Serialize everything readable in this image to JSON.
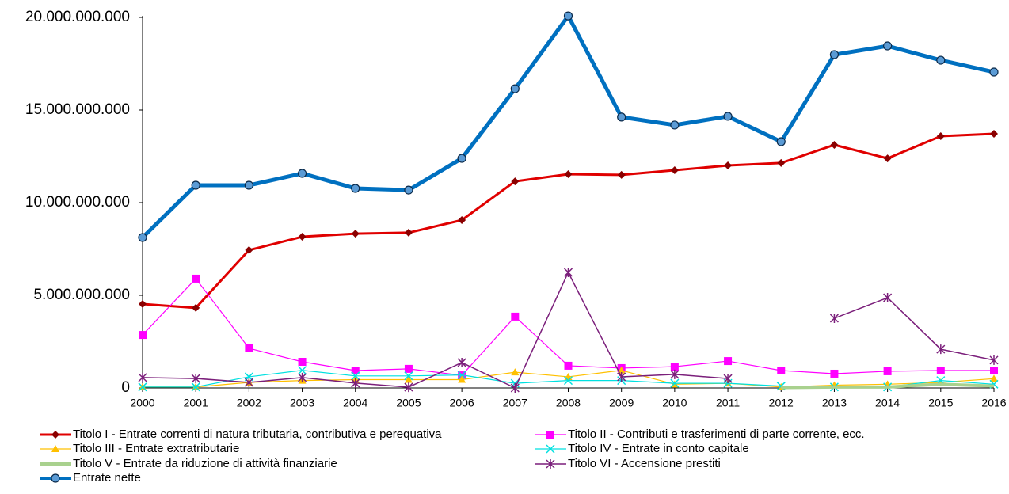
{
  "chart_data": {
    "type": "line",
    "categories": [
      "2000",
      "2001",
      "2002",
      "2003",
      "2004",
      "2005",
      "2006",
      "2007",
      "2008",
      "2009",
      "2010",
      "2011",
      "2012",
      "2013",
      "2014",
      "2015",
      "2016"
    ],
    "ylim": [
      0,
      20000000000
    ],
    "yticks": [
      0,
      {
        "value": 5000000000,
        "label": "5.000.000.000"
      },
      {
        "value": 10000000000,
        "label": "10.000.000.000"
      },
      {
        "value": 15000000000,
        "label": "15.000.000.000"
      },
      {
        "value": 20000000000,
        "label": "20.000.000.000"
      }
    ],
    "grid": false,
    "legend": "bottom",
    "series": [
      {
        "name": "Titolo I - Entrate correnti di natura tributaria, contributiva e perequativa",
        "color": "#e00000",
        "marker_color": "#8b0000",
        "marker": "diamond",
        "width": 3,
        "values": [
          4530000000,
          4320000000,
          7440000000,
          8160000000,
          8330000000,
          8380000000,
          9060000000,
          11150000000,
          11540000000,
          11500000000,
          11750000000,
          12010000000,
          12140000000,
          13120000000,
          12390000000,
          13590000000,
          13720000000
        ]
      },
      {
        "name": "Titolo II - Contributi e trasferimenti di parte corrente, ecc.",
        "color": "#ff00ff",
        "marker_color": "#ff00ff",
        "marker": "square",
        "width": 1.2,
        "values": [
          2860000000,
          5900000000,
          2140000000,
          1410000000,
          940000000,
          1030000000,
          680000000,
          3850000000,
          1200000000,
          1070000000,
          1150000000,
          1450000000,
          940000000,
          770000000,
          900000000,
          940000000,
          940000000
        ]
      },
      {
        "name": "Titolo III - Entrate extratributarie",
        "color": "#ffc000",
        "marker_color": "#ffc000",
        "marker": "triangle",
        "width": 1.2,
        "values": [
          50000000,
          50000000,
          300000000,
          400000000,
          450000000,
          450000000,
          450000000,
          850000000,
          600000000,
          950000000,
          200000000,
          250000000,
          50000000,
          150000000,
          200000000,
          300000000,
          500000000
        ]
      },
      {
        "name": "Titolo IV - Entrate in conto capitale",
        "color": "#00e0e0",
        "marker_color": "#00e0e0",
        "marker": "x",
        "width": 1.2,
        "values": [
          50000000,
          50000000,
          600000000,
          950000000,
          650000000,
          650000000,
          700000000,
          250000000,
          400000000,
          400000000,
          250000000,
          250000000,
          100000000,
          50000000,
          50000000,
          400000000,
          200000000
        ]
      },
      {
        "name": "Titolo V - Entrate da riduzione di attività finanziarie",
        "color": "#a9d18e",
        "marker_color": "#a9d18e",
        "marker": "none",
        "width": 4,
        "values": [
          null,
          null,
          null,
          null,
          null,
          null,
          null,
          null,
          null,
          null,
          null,
          null,
          20000000,
          50000000,
          50000000,
          200000000,
          100000000
        ]
      },
      {
        "name": "Titolo VI - Accensione prestiti",
        "color": "#7b1f7b",
        "marker_color": "#7b1f7b",
        "marker": "asterisk",
        "width": 1.5,
        "values": [
          560000000,
          510000000,
          300000000,
          560000000,
          260000000,
          40000000,
          1370000000,
          0,
          6240000000,
          600000000,
          730000000,
          510000000,
          null,
          3760000000,
          4870000000,
          2090000000,
          1500000000
        ]
      },
      {
        "name": "Entrate nette",
        "color": "#0070c0",
        "marker_color": "#5b9bd5",
        "marker": "circle",
        "width": 5,
        "values": [
          8120000000,
          10940000000,
          10940000000,
          11580000000,
          10770000000,
          10680000000,
          12390000000,
          16150000000,
          20080000000,
          14620000000,
          14190000000,
          14660000000,
          13290000000,
          17990000000,
          18460000000,
          17690000000,
          17050000000
        ]
      }
    ]
  }
}
